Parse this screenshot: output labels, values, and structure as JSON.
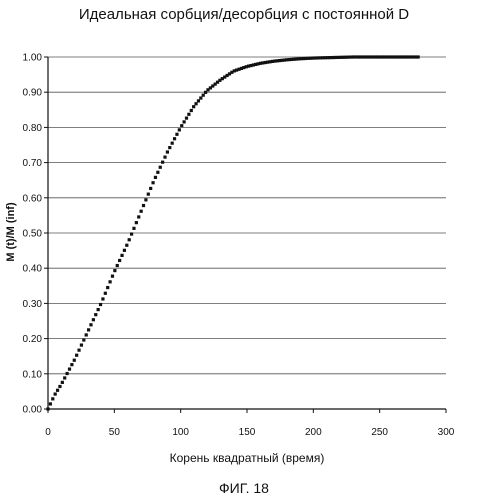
{
  "caption": "ФИГ. 18",
  "chart_data": {
    "type": "scatter",
    "title": "Идеальная сорбция/десорбция с постоянной D",
    "xlabel": "Корень квадратный (время)",
    "ylabel": "M (t)/M (inf)",
    "xlim": [
      0,
      300
    ],
    "ylim": [
      0,
      1.0
    ],
    "x_ticks": [
      "0",
      "50",
      "100",
      "150",
      "200",
      "250",
      "300"
    ],
    "y_ticks": [
      "0.00",
      "0.10",
      "0.20",
      "0.30",
      "0.40",
      "0.50",
      "0.60",
      "0.70",
      "0.80",
      "0.90",
      "1.00"
    ],
    "grid": "horizontal",
    "series": [
      {
        "x": [
          0,
          5,
          10,
          20,
          30,
          40,
          50,
          60,
          70,
          80,
          90,
          100,
          110,
          120,
          130,
          140,
          150,
          160,
          170,
          180,
          190,
          200,
          210,
          220,
          230,
          240,
          250,
          260,
          270,
          280
        ],
        "y": [
          0.0,
          0.04,
          0.07,
          0.14,
          0.22,
          0.3,
          0.39,
          0.47,
          0.56,
          0.65,
          0.73,
          0.8,
          0.86,
          0.905,
          0.935,
          0.96,
          0.973,
          0.982,
          0.988,
          0.992,
          0.995,
          0.997,
          0.998,
          0.999,
          1.0,
          1.0,
          1.0,
          1.0,
          1.0,
          1.0
        ]
      }
    ]
  }
}
